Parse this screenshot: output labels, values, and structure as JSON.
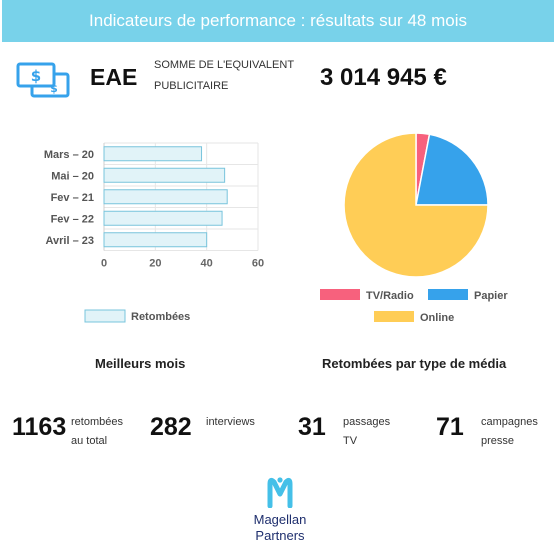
{
  "header": {
    "title": "Indicateurs de performance : résultats sur 48 mois"
  },
  "eae": {
    "icon": "money-bills-icon",
    "label": "EAE",
    "description_line1": "SOMME DE L'EQUIVALENT",
    "description_line2": "PUBLICITAIRE",
    "value": "3 014 945 €"
  },
  "sections": {
    "best_months_title": "Meilleurs mois",
    "media_type_title": "Retombées par type de média"
  },
  "colors": {
    "bar_fill": "#e1f3f8",
    "bar_stroke": "#78c4dc",
    "tv_radio": "#f7617d",
    "papier": "#36a2eb",
    "online": "#ffcd56",
    "banner": "#78d2ea"
  },
  "chart_data": [
    {
      "type": "bar",
      "orientation": "horizontal",
      "categories": [
        "Mars – 20",
        "Mai – 20",
        "Fev – 21",
        "Fev – 22",
        "Avril – 23"
      ],
      "series": [
        {
          "name": "Retombées",
          "values": [
            38,
            47,
            48,
            46,
            40
          ]
        }
      ],
      "xlim": [
        0,
        60
      ],
      "xticks": [
        "0",
        "20",
        "40",
        "60"
      ],
      "grid": true,
      "legend": "bottom"
    },
    {
      "type": "pie",
      "labels": [
        "TV/Radio",
        "Papier",
        "Online"
      ],
      "values": [
        3,
        22,
        75
      ],
      "legend": "bottom"
    }
  ],
  "stats": [
    {
      "number": "1163",
      "line1": "retombées",
      "line2": "au total"
    },
    {
      "number": "282",
      "line1": "interviews",
      "line2": ""
    },
    {
      "number": "31",
      "line1": "passages",
      "line2": "TV"
    },
    {
      "number": "71",
      "line1": "campagnes",
      "line2": "presse"
    }
  ],
  "logo": {
    "icon": "magellan-m-logo-icon",
    "line1": "Magellan",
    "line2": "Partners"
  }
}
